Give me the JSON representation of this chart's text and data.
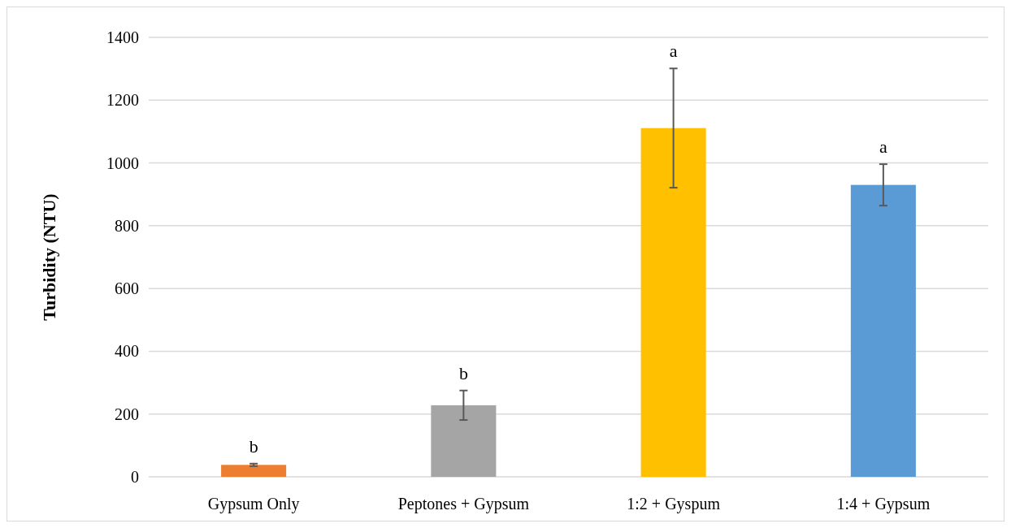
{
  "chart_data": {
    "type": "bar",
    "ylabel": "Turbidity  (NTU)",
    "categories": [
      "Gypsum Only",
      "Peptones + Gypsum",
      "1:2 + Gyspum",
      "1:4 + Gypsum"
    ],
    "values": [
      38,
      228,
      1111,
      930
    ],
    "colors": [
      "#ed7d31",
      "#a5a5a5",
      "#ffc000",
      "#5b9bd5"
    ],
    "errors": [
      4,
      47,
      190,
      66
    ],
    "ylim": [
      0,
      1400
    ],
    "yticks": [
      0,
      200,
      400,
      600,
      800,
      1000,
      1200,
      1400
    ],
    "grid": "y",
    "annotations": [
      {
        "text": "b",
        "x": "Gypsum Only",
        "y": 42
      },
      {
        "text": "b",
        "x": "Peptones + Gypsum",
        "y": 275
      },
      {
        "text": "a",
        "x": "1:2 + Gyspum",
        "y": 1301
      },
      {
        "text": "a",
        "x": "1:4 + Gypsum",
        "y": 996
      }
    ]
  }
}
